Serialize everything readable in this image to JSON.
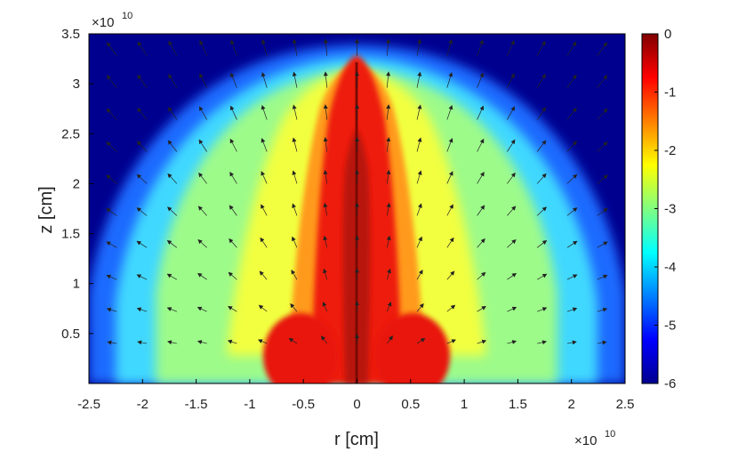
{
  "chart_data": {
    "type": "heatmap",
    "title": "",
    "xlabel": "r [cm]",
    "ylabel": "z [cm]",
    "x_multiplier": {
      "base": "×10",
      "exponent": "10"
    },
    "y_multiplier": {
      "base": "×10",
      "exponent": "10"
    },
    "xlim": [
      -2.5,
      2.5
    ],
    "ylim": [
      0,
      3.5
    ],
    "x_ticks": [
      "-2.5",
      "-2",
      "-1.5",
      "-1",
      "-0.5",
      "0",
      "0.5",
      "1",
      "1.5",
      "2",
      "2.5"
    ],
    "y_ticks": [
      "0.5",
      "1",
      "1.5",
      "2",
      "2.5",
      "3",
      "3.5"
    ],
    "colorbar": {
      "colormap": "jet",
      "range": [
        -6,
        0
      ],
      "ticks": [
        "0",
        "-1",
        "-2",
        "-3",
        "-4",
        "-5",
        "-6"
      ]
    },
    "overlay": "velocity vector arrows (black)",
    "features": {
      "jet_axis_r": 0,
      "jet_top_z": 3.45,
      "cocoon_half_width_r": 2.5,
      "cocoon_top_z": 3.45,
      "base_lobes_r": [
        -0.65,
        0.65
      ],
      "base_lobes_z": 0.35
    }
  },
  "colors": {
    "background": "#000080",
    "frame": "#000000"
  }
}
